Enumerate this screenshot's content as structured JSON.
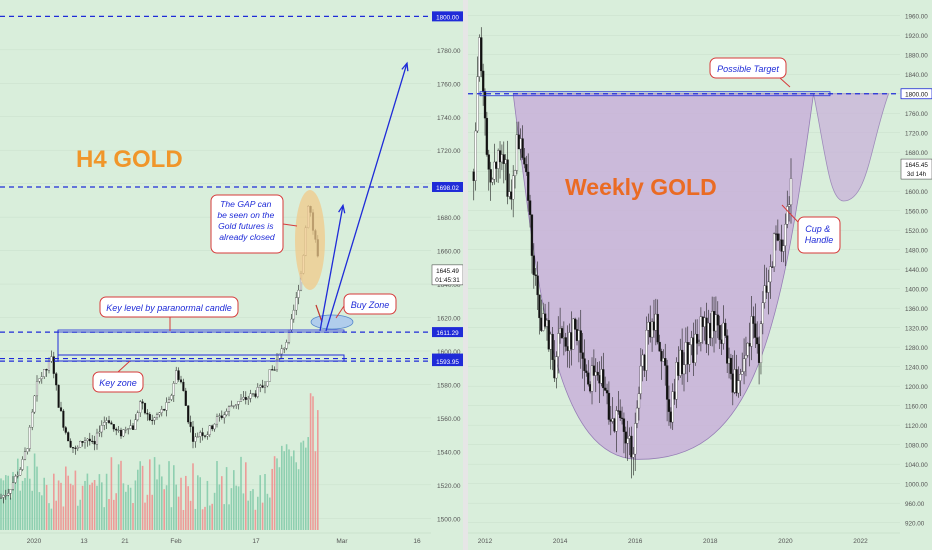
{
  "colors": {
    "background": "#d9eedb",
    "panel_divider": "#e6e6e6",
    "dashed_level": "#1f2bd8",
    "candle_up": "#ffffff",
    "candle_down": "#111111",
    "volume_up": "#80c9a8",
    "volume_down": "#f08c8c",
    "h4_title": "#f0962a",
    "weekly_title": "#ea6b24",
    "cup_fill": "#c9b2da",
    "cup_stroke": "#8b6bb0",
    "gap_ellipse": "#f0c98a",
    "buy_zone": "#a9c8ef",
    "callout_border": "#d63a3a",
    "callout_text": "#1f2bd8",
    "axis_text": "#555555"
  },
  "chart_data": [
    {
      "type": "candlestick",
      "title": "H4 GOLD",
      "x_ticks": [
        "2020",
        "13",
        "21",
        "Feb",
        "17",
        "Mar",
        "16"
      ],
      "y_ticks": [
        1500,
        1520,
        1540,
        1560,
        1580,
        1600,
        1620,
        1640,
        1660,
        1680,
        1700,
        1720,
        1740,
        1760,
        1780
      ],
      "ylim": [
        1493,
        1805
      ],
      "levels": [
        1800.0,
        1698.02,
        1611.29,
        1595.47,
        1593.95
      ],
      "last_price": "1645.49",
      "countdown": "01:45:31",
      "price_path": {
        "x": [
          0,
          8,
          16,
          22,
          28,
          33,
          36,
          40,
          46,
          52,
          58,
          64,
          70,
          76,
          82,
          88,
          94,
          100,
          108,
          114,
          120,
          128,
          134,
          140,
          146,
          152,
          158,
          164,
          170,
          176,
          182,
          188,
          194,
          200,
          206,
          212,
          218,
          224,
          232,
          240,
          248,
          256,
          262,
          268,
          274,
          280,
          286,
          290,
          293,
          296,
          299,
          302,
          304,
          306,
          308,
          310,
          312,
          314,
          316,
          318,
          320
        ],
        "y": [
          1512,
          1516,
          1525,
          1532,
          1545,
          1565,
          1578,
          1584,
          1588,
          1596,
          1570,
          1555,
          1545,
          1540,
          1546,
          1548,
          1542,
          1555,
          1560,
          1553,
          1550,
          1556,
          1554,
          1570,
          1562,
          1558,
          1562,
          1565,
          1570,
          1588,
          1580,
          1560,
          1546,
          1552,
          1550,
          1555,
          1560,
          1562,
          1568,
          1570,
          1572,
          1575,
          1578,
          1585,
          1590,
          1598,
          1605,
          1612,
          1622,
          1630,
          1640,
          1650,
          1662,
          1675,
          1689,
          1686,
          1675,
          1670,
          1665,
          1655,
          1645
        ]
      },
      "projections": [
        {
          "from": [
            320,
            1612
          ],
          "to": [
            343,
            1687
          ]
        },
        {
          "from": [
            326,
            1612
          ],
          "to": [
            407,
            1772
          ]
        }
      ],
      "callouts": [
        "The GAP can be seen on the Gold futures is already closed",
        "Key level by paranormal candle",
        "Buy Zone",
        "Key zone"
      ]
    },
    {
      "type": "candlestick",
      "title": "Weekly GOLD",
      "x_ticks": [
        "2012",
        "2014",
        "2016",
        "2018",
        "2020",
        "2022"
      ],
      "x_domain": [
        2011.6,
        2023.0
      ],
      "y_ticks": [
        920,
        960,
        1000,
        1040,
        1080,
        1120,
        1160,
        1200,
        1240,
        1280,
        1320,
        1360,
        1400,
        1440,
        1480,
        1520,
        1560,
        1600,
        1640,
        1680,
        1720,
        1760,
        1800,
        1840,
        1880,
        1920,
        1960
      ],
      "ylim": [
        905,
        1980
      ],
      "levels": [
        1800.0
      ],
      "last_price": "1645.45",
      "countdown": "3d 14h",
      "price_path": {
        "x": [
          2011.7,
          2011.85,
          2012.0,
          2012.2,
          2012.45,
          2012.7,
          2012.85,
          2013.0,
          2013.15,
          2013.3,
          2013.5,
          2013.7,
          2013.85,
          2014.0,
          2014.2,
          2014.4,
          2014.6,
          2014.8,
          2015.0,
          2015.2,
          2015.4,
          2015.6,
          2015.8,
          2015.95,
          2016.15,
          2016.35,
          2016.55,
          2016.75,
          2016.95,
          2017.1,
          2017.35,
          2017.55,
          2017.75,
          2017.95,
          2018.15,
          2018.35,
          2018.55,
          2018.75,
          2018.95,
          2019.1,
          2019.3,
          2019.5,
          2019.7,
          2019.9,
          2020.05,
          2020.15
        ],
        "y": [
          1640,
          1900,
          1720,
          1620,
          1680,
          1580,
          1700,
          1660,
          1580,
          1420,
          1340,
          1300,
          1250,
          1310,
          1300,
          1320,
          1270,
          1200,
          1240,
          1180,
          1150,
          1120,
          1080,
          1060,
          1220,
          1300,
          1340,
          1260,
          1150,
          1220,
          1270,
          1280,
          1320,
          1310,
          1340,
          1300,
          1230,
          1190,
          1250,
          1320,
          1280,
          1420,
          1500,
          1480,
          1560,
          1645
        ]
      },
      "cup": {
        "left_rim": [
          2012.75,
          1800
        ],
        "bottom": [
          2016.1,
          1050
        ],
        "right_rim": [
          2020.75,
          1800
        ]
      },
      "handle": {
        "start": [
          2020.75,
          1800
        ],
        "low": [
          2021.55,
          1580
        ],
        "end": [
          2022.75,
          1800
        ]
      },
      "callouts": [
        "Possible Target",
        "Cup & Handle"
      ]
    }
  ]
}
